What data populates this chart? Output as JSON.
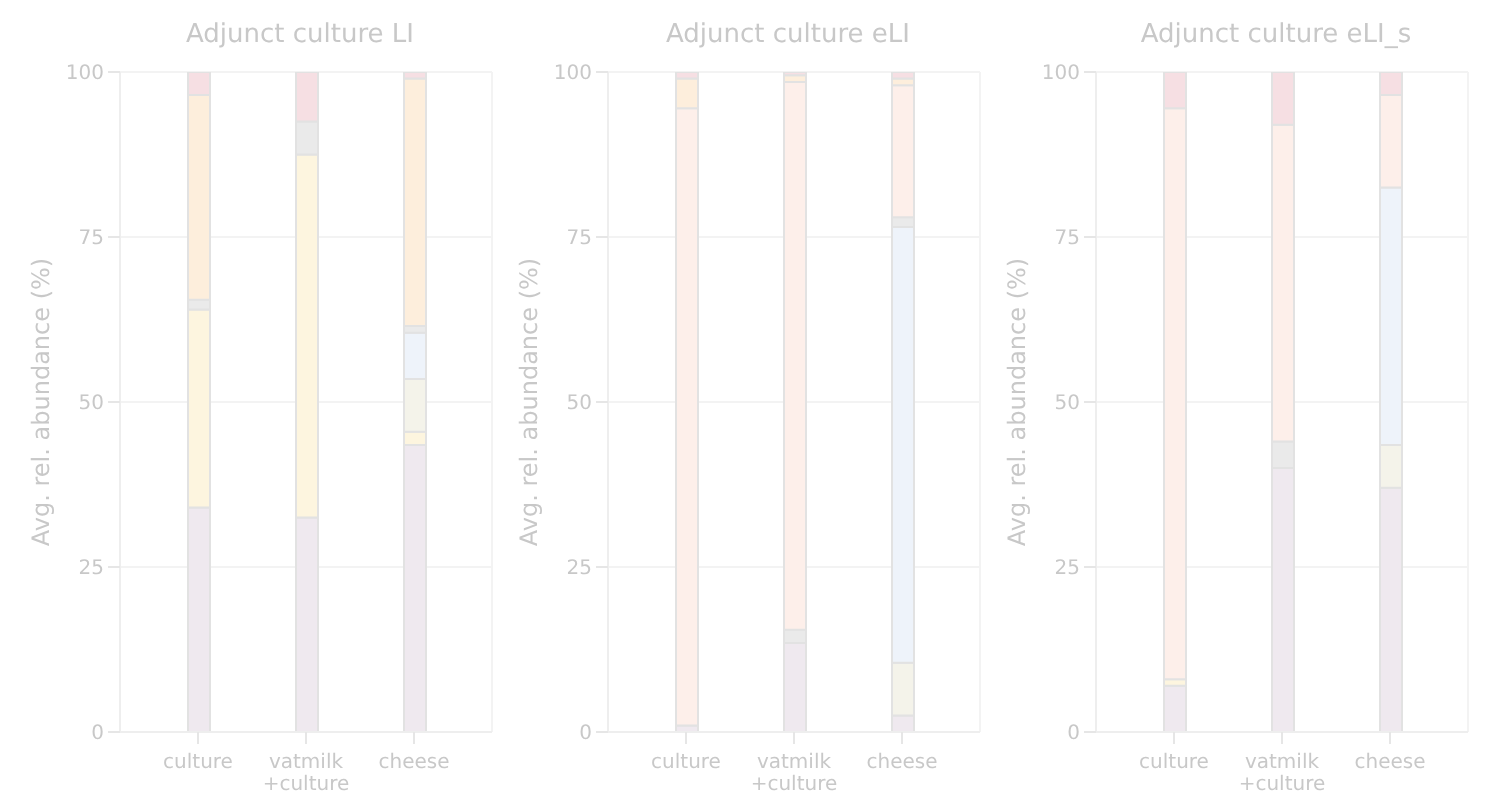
{
  "chart_data": [
    {
      "type": "bar",
      "stacked": true,
      "title": "Adjunct culture LI",
      "ylabel": "Avg. rel. abundance (%)",
      "categories": [
        "culture",
        "vatmilk\n+culture",
        "cheese"
      ],
      "ylim": [
        0,
        100
      ],
      "yticks": [
        0,
        25,
        50,
        75,
        100
      ],
      "grid": true,
      "series": [
        {
          "color": "#efe9ef",
          "values": [
            34,
            32.5,
            43.5
          ]
        },
        {
          "color": "#fdf5df",
          "values": [
            30,
            55,
            2
          ]
        },
        {
          "color": "#f4f3ea",
          "values": [
            0,
            0,
            8
          ]
        },
        {
          "color": "#eef3fa",
          "values": [
            0,
            0,
            7
          ]
        },
        {
          "color": "#eaeaea",
          "values": [
            1.5,
            5,
            1
          ]
        },
        {
          "color": "#fdefea",
          "values": [
            0,
            0,
            0
          ]
        },
        {
          "color": "#fdeedc",
          "values": [
            31,
            0,
            37.5
          ]
        },
        {
          "color": "#f6dfe3",
          "values": [
            3.5,
            7.5,
            1
          ]
        }
      ]
    },
    {
      "type": "bar",
      "stacked": true,
      "title": "Adjunct culture eLI",
      "ylabel": "Avg. rel. abundance (%)",
      "categories": [
        "culture",
        "vatmilk\n+culture",
        "cheese"
      ],
      "ylim": [
        0,
        100
      ],
      "yticks": [
        0,
        25,
        50,
        75,
        100
      ],
      "grid": true,
      "series": [
        {
          "color": "#efe9ef",
          "values": [
            1,
            13.5,
            2.5
          ]
        },
        {
          "color": "#fdf5df",
          "values": [
            0,
            0,
            0
          ]
        },
        {
          "color": "#f4f3ea",
          "values": [
            0,
            0,
            8
          ]
        },
        {
          "color": "#eef3fa",
          "values": [
            0,
            0,
            66
          ]
        },
        {
          "color": "#eaeaea",
          "values": [
            0,
            2,
            1.5
          ]
        },
        {
          "color": "#fdefea",
          "values": [
            93.5,
            83,
            20
          ]
        },
        {
          "color": "#fdeedc",
          "values": [
            4.5,
            1,
            1
          ]
        },
        {
          "color": "#f6dfe3",
          "values": [
            1,
            0.5,
            1
          ]
        }
      ]
    },
    {
      "type": "bar",
      "stacked": true,
      "title": "Adjunct culture eLI_s",
      "ylabel": "Avg. rel. abundance (%)",
      "categories": [
        "culture",
        "vatmilk\n+culture",
        "cheese"
      ],
      "ylim": [
        0,
        100
      ],
      "yticks": [
        0,
        25,
        50,
        75,
        100
      ],
      "grid": true,
      "series": [
        {
          "color": "#efe9ef",
          "values": [
            7,
            40,
            37
          ]
        },
        {
          "color": "#fdf5df",
          "values": [
            1,
            0,
            0
          ]
        },
        {
          "color": "#f4f3ea",
          "values": [
            0,
            0,
            6.5
          ]
        },
        {
          "color": "#eef3fa",
          "values": [
            0,
            0,
            39
          ]
        },
        {
          "color": "#eaeaea",
          "values": [
            0,
            4,
            0
          ]
        },
        {
          "color": "#fdefea",
          "values": [
            86.5,
            48,
            14
          ]
        },
        {
          "color": "#fdeedc",
          "values": [
            0,
            0,
            0
          ]
        },
        {
          "color": "#f6dfe3",
          "values": [
            5.5,
            8,
            3.5
          ]
        }
      ]
    }
  ]
}
